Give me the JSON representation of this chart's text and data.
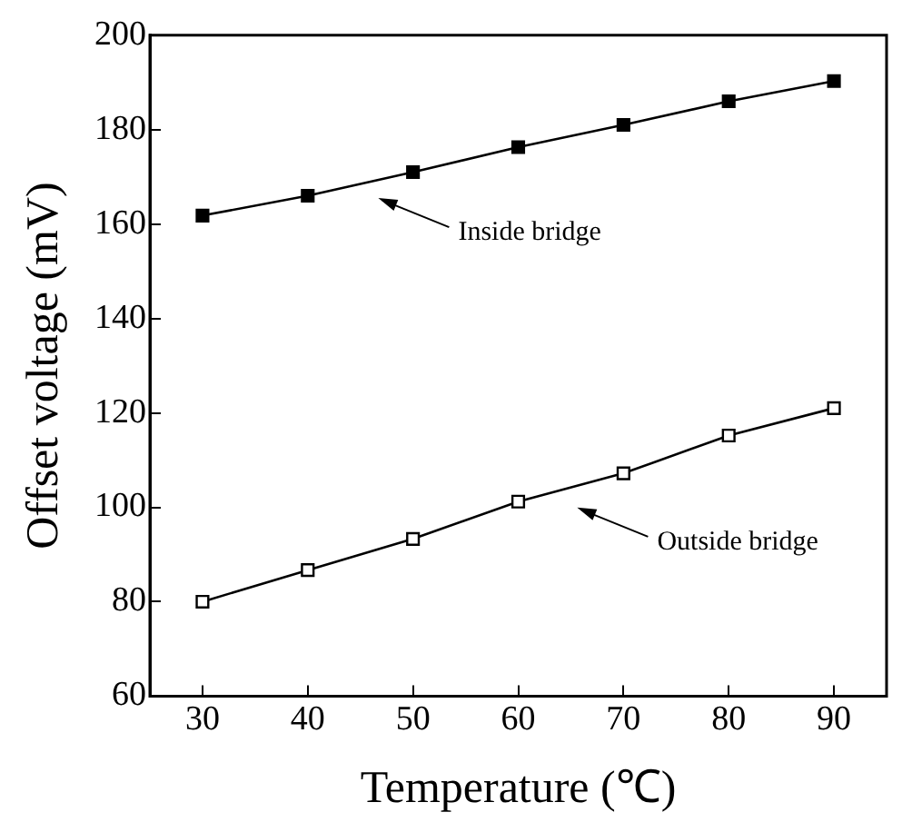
{
  "chart_data": {
    "type": "line",
    "xlabel": "Temperature (℃)",
    "ylabel": "Offset voltage (mV)",
    "x": [
      30,
      40,
      50,
      60,
      70,
      80,
      90
    ],
    "series": [
      {
        "color": "#000000",
        "marker": "square",
        "values": [
          161.8,
          166,
          171,
          176.3,
          181,
          186,
          190.3
        ]
      },
      {
        "color": "#000000",
        "marker": "square_open",
        "values": [
          80,
          86.7,
          93.3,
          101.2,
          107.2,
          115.2,
          121
        ]
      }
    ],
    "xlim": [
      25,
      95
    ],
    "xticks": [
      30,
      40,
      50,
      60,
      70,
      80,
      90
    ],
    "ylim": [
      60,
      200
    ],
    "yticks": [
      60,
      80,
      100,
      120,
      140,
      160,
      180,
      200
    ],
    "annotations": [
      "Inside bridge",
      "Outside bridge"
    ],
    "grid": false,
    "legend": false,
    "line_style": "solid"
  }
}
